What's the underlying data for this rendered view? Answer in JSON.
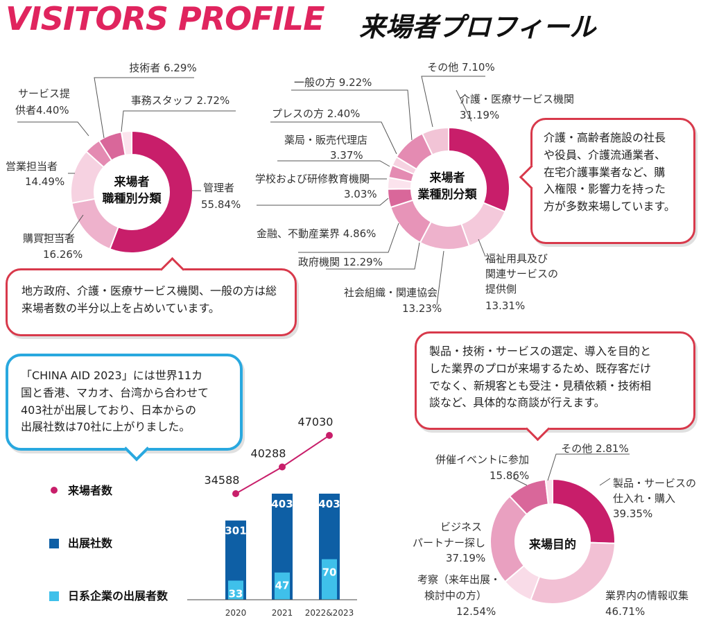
{
  "header": {
    "title_en": "VISITORS PROFILE",
    "title_jp": "来場者プロフィール"
  },
  "chart_data": [
    {
      "type": "pie",
      "title": "来場者 職種別分類",
      "labels": [
        "管理者",
        "購買担当者",
        "営業担当者",
        "サービス提供者",
        "技術者",
        "事務スタッフ"
      ],
      "values": [
        55.84,
        16.26,
        14.49,
        4.4,
        6.29,
        2.72
      ],
      "colors": [
        "#c81e6a",
        "#eeb2cc",
        "#f6d2e1",
        "#e48bb2",
        "#d9679a",
        "#fbe3ed"
      ]
    },
    {
      "type": "pie",
      "title": "来場者 業種別分類",
      "labels": [
        "介護・医療サービス機関",
        "福祉用具及び関連サービスの提供側",
        "社会組織・関連協会",
        "政府機関",
        "金融、不動産業界",
        "学校および研修教育機関",
        "薬局・販売代理店",
        "プレスの方",
        "一般の方",
        "その他"
      ],
      "values": [
        31.19,
        13.31,
        13.23,
        12.29,
        4.86,
        3.03,
        3.37,
        2.4,
        9.22,
        7.1
      ],
      "colors": [
        "#c81e6a",
        "#f4c9db",
        "#eeb2cc",
        "#e794b8",
        "#d9679a",
        "#fbe3ed",
        "#e48bb2",
        "#f6d2e1",
        "#e48bb2",
        "#f2c4d6"
      ]
    },
    {
      "type": "pie",
      "title": "来場目的",
      "labels": [
        "製品・サービスの仕入れ・購入",
        "業界内の情報収集",
        "考察（来年出展・検討中の方）",
        "ビジネスパートナー探し",
        "併催イベントに参加",
        "その他"
      ],
      "values": [
        39.35,
        46.71,
        12.54,
        37.19,
        15.86,
        2.81
      ],
      "colors": [
        "#c81e6a",
        "#f2c0d4",
        "#f9dce8",
        "#e9a0c0",
        "#d9679a",
        "#fbe3ed"
      ]
    },
    {
      "type": "bar",
      "categories": [
        "2020",
        "2021",
        "2022&2023"
      ],
      "series": [
        {
          "name": "来場者数",
          "type": "line",
          "values": [
            34588,
            40288,
            47030
          ],
          "color": "#c81e6a"
        },
        {
          "name": "出展社数",
          "values": [
            301,
            403,
            403
          ],
          "color": "#0e5fa5"
        },
        {
          "name": "日系企業の出展者数",
          "values": [
            33,
            47,
            70
          ],
          "color": "#3fc0ea"
        }
      ]
    }
  ],
  "donut1": {
    "center": [
      "来場者",
      "職種別分類"
    ],
    "labels": {
      "tech": "技術者 6.29%",
      "office": "事務スタッフ 2.72%",
      "service1": "サービス提",
      "service2": "供者4.40%",
      "sales1": "営業担当者",
      "sales2": "14.49%",
      "mgr1": "管理者",
      "mgr2": "55.84%",
      "buy1": "購買担当者",
      "buy2": "16.26%"
    }
  },
  "donut2": {
    "center": [
      "来場者",
      "業種別分類"
    ],
    "labels": {
      "other": "その他 7.10%",
      "care1": "介護・医療サービス機関",
      "care2": "31.19%",
      "general": "一般の方 9.22%",
      "press": "プレスの方 2.40%",
      "pharm1": "薬局・販売代理店",
      "pharm2": "3.37%",
      "school1": "学校および研修教育機関",
      "school2": "3.03%",
      "finance": "金融、不動産業界 4.86%",
      "gov": "政府機関 12.29%",
      "society1": "社会組織・関連協会",
      "society2": "13.23%",
      "welfare1": "福祉用具及び",
      "welfare2": "関連サービスの",
      "welfare3": "提供側",
      "welfare4": "13.31%"
    }
  },
  "donut3": {
    "center": [
      "来場目的"
    ],
    "labels": {
      "other": "その他 2.81%",
      "event1": "併催イベントに参加",
      "event2": "15.86%",
      "buy1": "製品・サービスの",
      "buy2": "仕入れ・購入",
      "buy3": "39.35%",
      "biz1": "ビジネス",
      "biz2": "パートナー探し",
      "biz3": "37.19%",
      "study1": "考察（来年出展・",
      "study2": "検討中の方）",
      "study3": "12.54%",
      "info1": "業界内の情報収集",
      "info2": "46.71%"
    }
  },
  "bubbles": {
    "industry": [
      "介護・高齢者施設の社長",
      "や役員、介護流通業者、",
      "在宅介護事業者など、購",
      "入権限・影響力を持った",
      "方が多数来場しています。"
    ],
    "gov": [
      "地方政府、介護・医療サービス機関、一般の方は総",
      "来場者数の半分以上を占めいています。"
    ],
    "china": [
      "「CHINA AID 2023」には世界11カ",
      "国と香港、マカオ、台湾から合わせて",
      "403社が出展しており、日本からの",
      "出展社数は70社に上がりました。"
    ],
    "purpose": [
      "製品・技術・サービスの選定、導入を目的と",
      "した業界のプロが来場するため、既存客だけ",
      "でなく、新規客とも受注・見積依頼・技術相",
      "談など、具体的な商談が行えます。"
    ]
  },
  "legend": {
    "visitors": "来場者数",
    "exhibitors": "出展社数",
    "japan": "日系企業の出展者数"
  },
  "bar_labels": {
    "visitors": [
      "34588",
      "40288",
      "47030"
    ],
    "exhibitors": [
      "301",
      "403",
      "403"
    ],
    "japan": [
      "33",
      "47",
      "70"
    ],
    "years": [
      "2020",
      "2021",
      "2022&2023"
    ]
  }
}
